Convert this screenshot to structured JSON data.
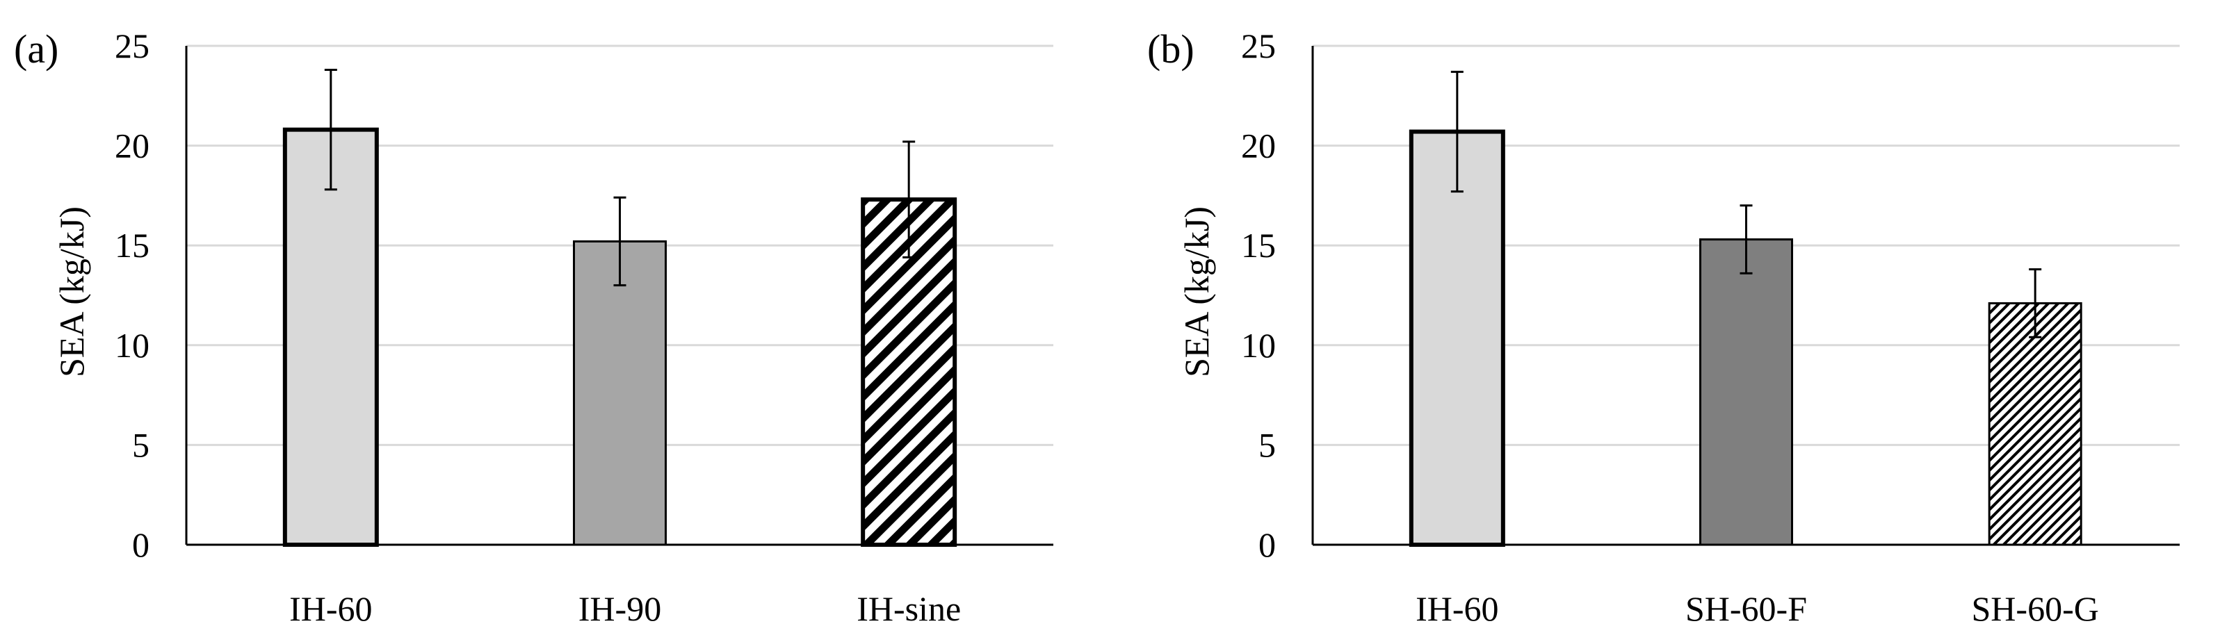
{
  "chart_data": [
    {
      "type": "bar",
      "panel_label": "(a)",
      "categories": [
        "IH-60",
        "IH-90",
        "IH-sine"
      ],
      "values": [
        20.8,
        15.2,
        17.3
      ],
      "errors": [
        3.0,
        2.2,
        2.9
      ],
      "styles": [
        "light-gray-thick-border",
        "mid-gray",
        "black-hatched-thick-border"
      ],
      "title": "",
      "xlabel": "",
      "ylabel": "SEA (kg/kJ)",
      "ylim": [
        0,
        25
      ],
      "yticks": [
        "0",
        "5",
        "10",
        "15",
        "20",
        "25"
      ],
      "grid": true,
      "legend": "none"
    },
    {
      "type": "bar",
      "panel_label": "(b)",
      "categories": [
        "IH-60",
        "SH-60-F",
        "SH-60-G"
      ],
      "values": [
        20.7,
        15.3,
        12.1
      ],
      "errors": [
        3.0,
        1.7,
        1.7
      ],
      "styles": [
        "light-gray-thick-border",
        "dark-gray",
        "black-hatched-fine"
      ],
      "title": "",
      "xlabel": "",
      "ylabel": "SEA (kg/kJ)",
      "ylim": [
        0,
        25
      ],
      "yticks": [
        "0",
        "5",
        "10",
        "15",
        "20",
        "25"
      ],
      "grid": true,
      "legend": "none"
    }
  ],
  "colors": {
    "grid": "#d9d9d9",
    "axis": "#000000",
    "light_gray": "#d9d9d9",
    "mid_gray": "#a6a6a6",
    "dark_gray": "#7f7f7f",
    "hatch": "#000000"
  }
}
